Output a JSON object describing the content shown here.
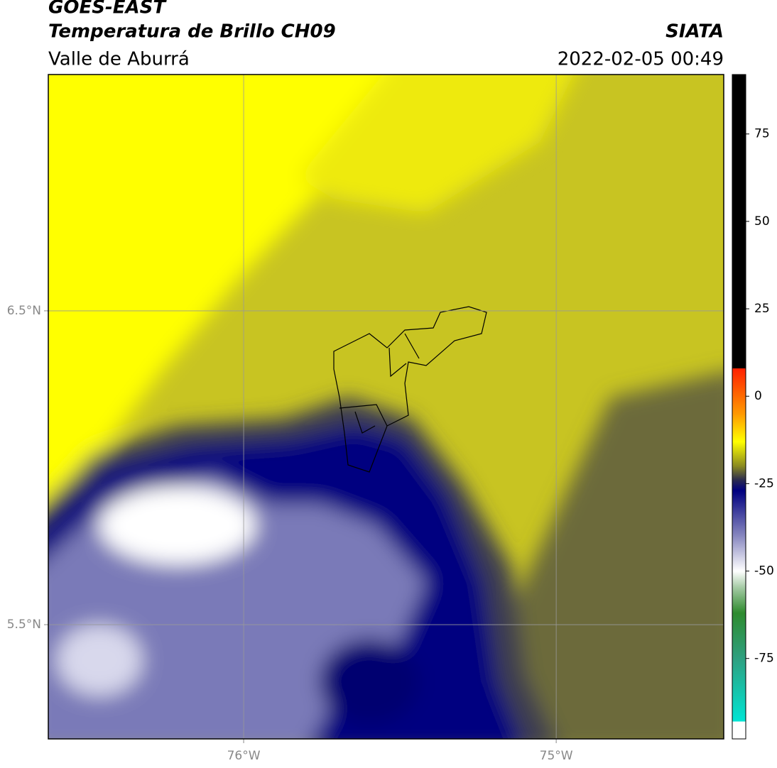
{
  "header": {
    "title": "GOES-EAST",
    "subtitle": "Temperatura de Brillo CH09",
    "region": "Valle de Aburrá",
    "source": "SIATA",
    "datetime": "2022-02-05 00:49"
  },
  "map": {
    "lonlim": [
      -76.625,
      -74.464
    ],
    "latlim": [
      5.136,
      7.253
    ],
    "lon_ticks": [
      {
        "value": -76,
        "label": "76°W"
      },
      {
        "value": -75,
        "label": "75°W"
      }
    ],
    "lat_ticks": [
      {
        "value": 6.5,
        "label": "6.5°N"
      },
      {
        "value": 5.5,
        "label": "5.5°N"
      }
    ],
    "grid": true
  },
  "colorbar": {
    "lim": [
      -98,
      92
    ],
    "ticks": [
      75,
      50,
      25,
      0,
      -25,
      -50,
      -75
    ],
    "stops": [
      {
        "value": 92,
        "color": "#000000"
      },
      {
        "value": 8,
        "color": "#000000"
      },
      {
        "value": 8,
        "color": "#ff2000"
      },
      {
        "value": -5,
        "color": "#ff9900"
      },
      {
        "value": -13,
        "color": "#ffff00"
      },
      {
        "value": -20,
        "color": "#8a8a20"
      },
      {
        "value": -24,
        "color": "#2a2a50"
      },
      {
        "value": -27,
        "color": "#000080"
      },
      {
        "value": -40,
        "color": "#8888c0"
      },
      {
        "value": -50,
        "color": "#ffffff"
      },
      {
        "value": -55,
        "color": "#a0c8a0"
      },
      {
        "value": -62,
        "color": "#2e8b2e"
      },
      {
        "value": -75,
        "color": "#2ea080"
      },
      {
        "value": -93,
        "color": "#00e5d4"
      },
      {
        "value": -93,
        "color": "#ffffff"
      },
      {
        "value": -98,
        "color": "#ffffff"
      }
    ]
  }
}
